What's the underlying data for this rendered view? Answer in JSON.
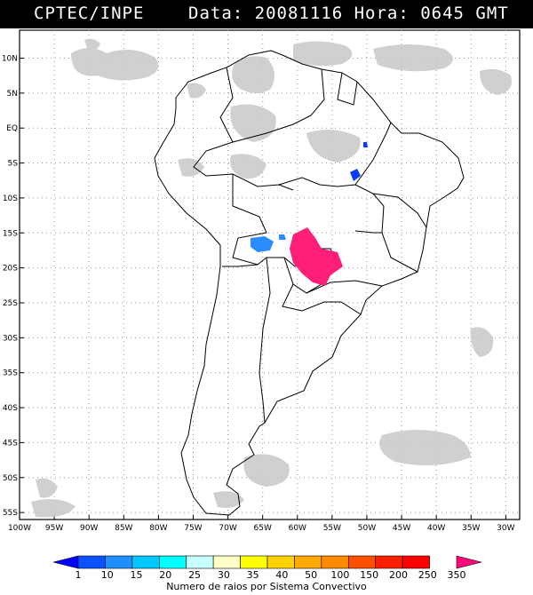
{
  "header": {
    "source": "CPTEC/INPE",
    "datetime": "Data: 20081116  Hora: 0645 GMT"
  },
  "map": {
    "lon_range": [
      -100,
      -28
    ],
    "lat_range": [
      -56,
      14
    ],
    "lat_labels": [
      "10N",
      "5N",
      "EQ",
      "5S",
      "10S",
      "15S",
      "20S",
      "25S",
      "30S",
      "35S",
      "40S",
      "45S",
      "50S",
      "55S"
    ],
    "lon_labels": [
      "100W",
      "95W",
      "90W",
      "85W",
      "80W",
      "75W",
      "70W",
      "65W",
      "60W",
      "55W",
      "50W",
      "45W",
      "40W",
      "35W",
      "30W"
    ]
  },
  "legend": {
    "ticks": [
      "1",
      "10",
      "15",
      "20",
      "25",
      "30",
      "35",
      "40",
      "50",
      "100",
      "150",
      "200",
      "250",
      "350"
    ],
    "colors": [
      "#0000ff",
      "#0a50ff",
      "#1e90ff",
      "#00c8ff",
      "#00ffff",
      "#c8ffff",
      "#ffffc8",
      "#ffff00",
      "#ffd200",
      "#ffaa00",
      "#ff8c00",
      "#ff5000",
      "#ff1e00",
      "#ff0000",
      "#ff0a78"
    ],
    "title": "Numero de raios por Sistema Convectivo"
  },
  "features": {
    "storm_colors": {
      "magenta": "#ff1e78",
      "light_blue": "#2a8cff",
      "blue": "#0a3cff",
      "cloud": "#c8c8c8"
    }
  }
}
